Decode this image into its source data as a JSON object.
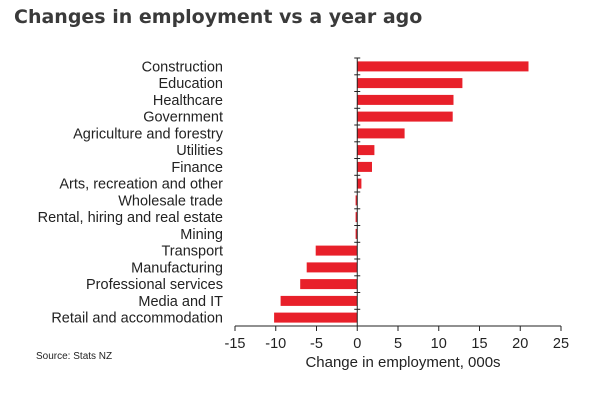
{
  "chart_data": {
    "type": "bar",
    "orientation": "horizontal",
    "title": "Changes in employment vs a year ago",
    "xlabel": "Change in employment, 000s",
    "ylabel": "",
    "source": "Source: Stats NZ",
    "xlim": [
      -15,
      25
    ],
    "xticks": [
      -15,
      -10,
      -5,
      0,
      5,
      10,
      15,
      20,
      25
    ],
    "bar_color": "#e8202a",
    "categories": [
      "Construction",
      "Education",
      "Healthcare",
      "Government",
      "Agriculture and forestry",
      "Utilities",
      "Finance",
      "Arts, recreation and other",
      "Wholesale trade",
      "Rental, hiring and real estate",
      "Mining",
      "Transport",
      "Manufacturing",
      "Professional services",
      "Media and IT",
      "Retail and accommodation"
    ],
    "values": [
      21.0,
      12.9,
      11.8,
      11.7,
      5.8,
      2.1,
      1.8,
      0.5,
      -0.2,
      -0.2,
      -0.2,
      -5.1,
      -6.2,
      -7.0,
      -9.4,
      -10.2
    ]
  }
}
